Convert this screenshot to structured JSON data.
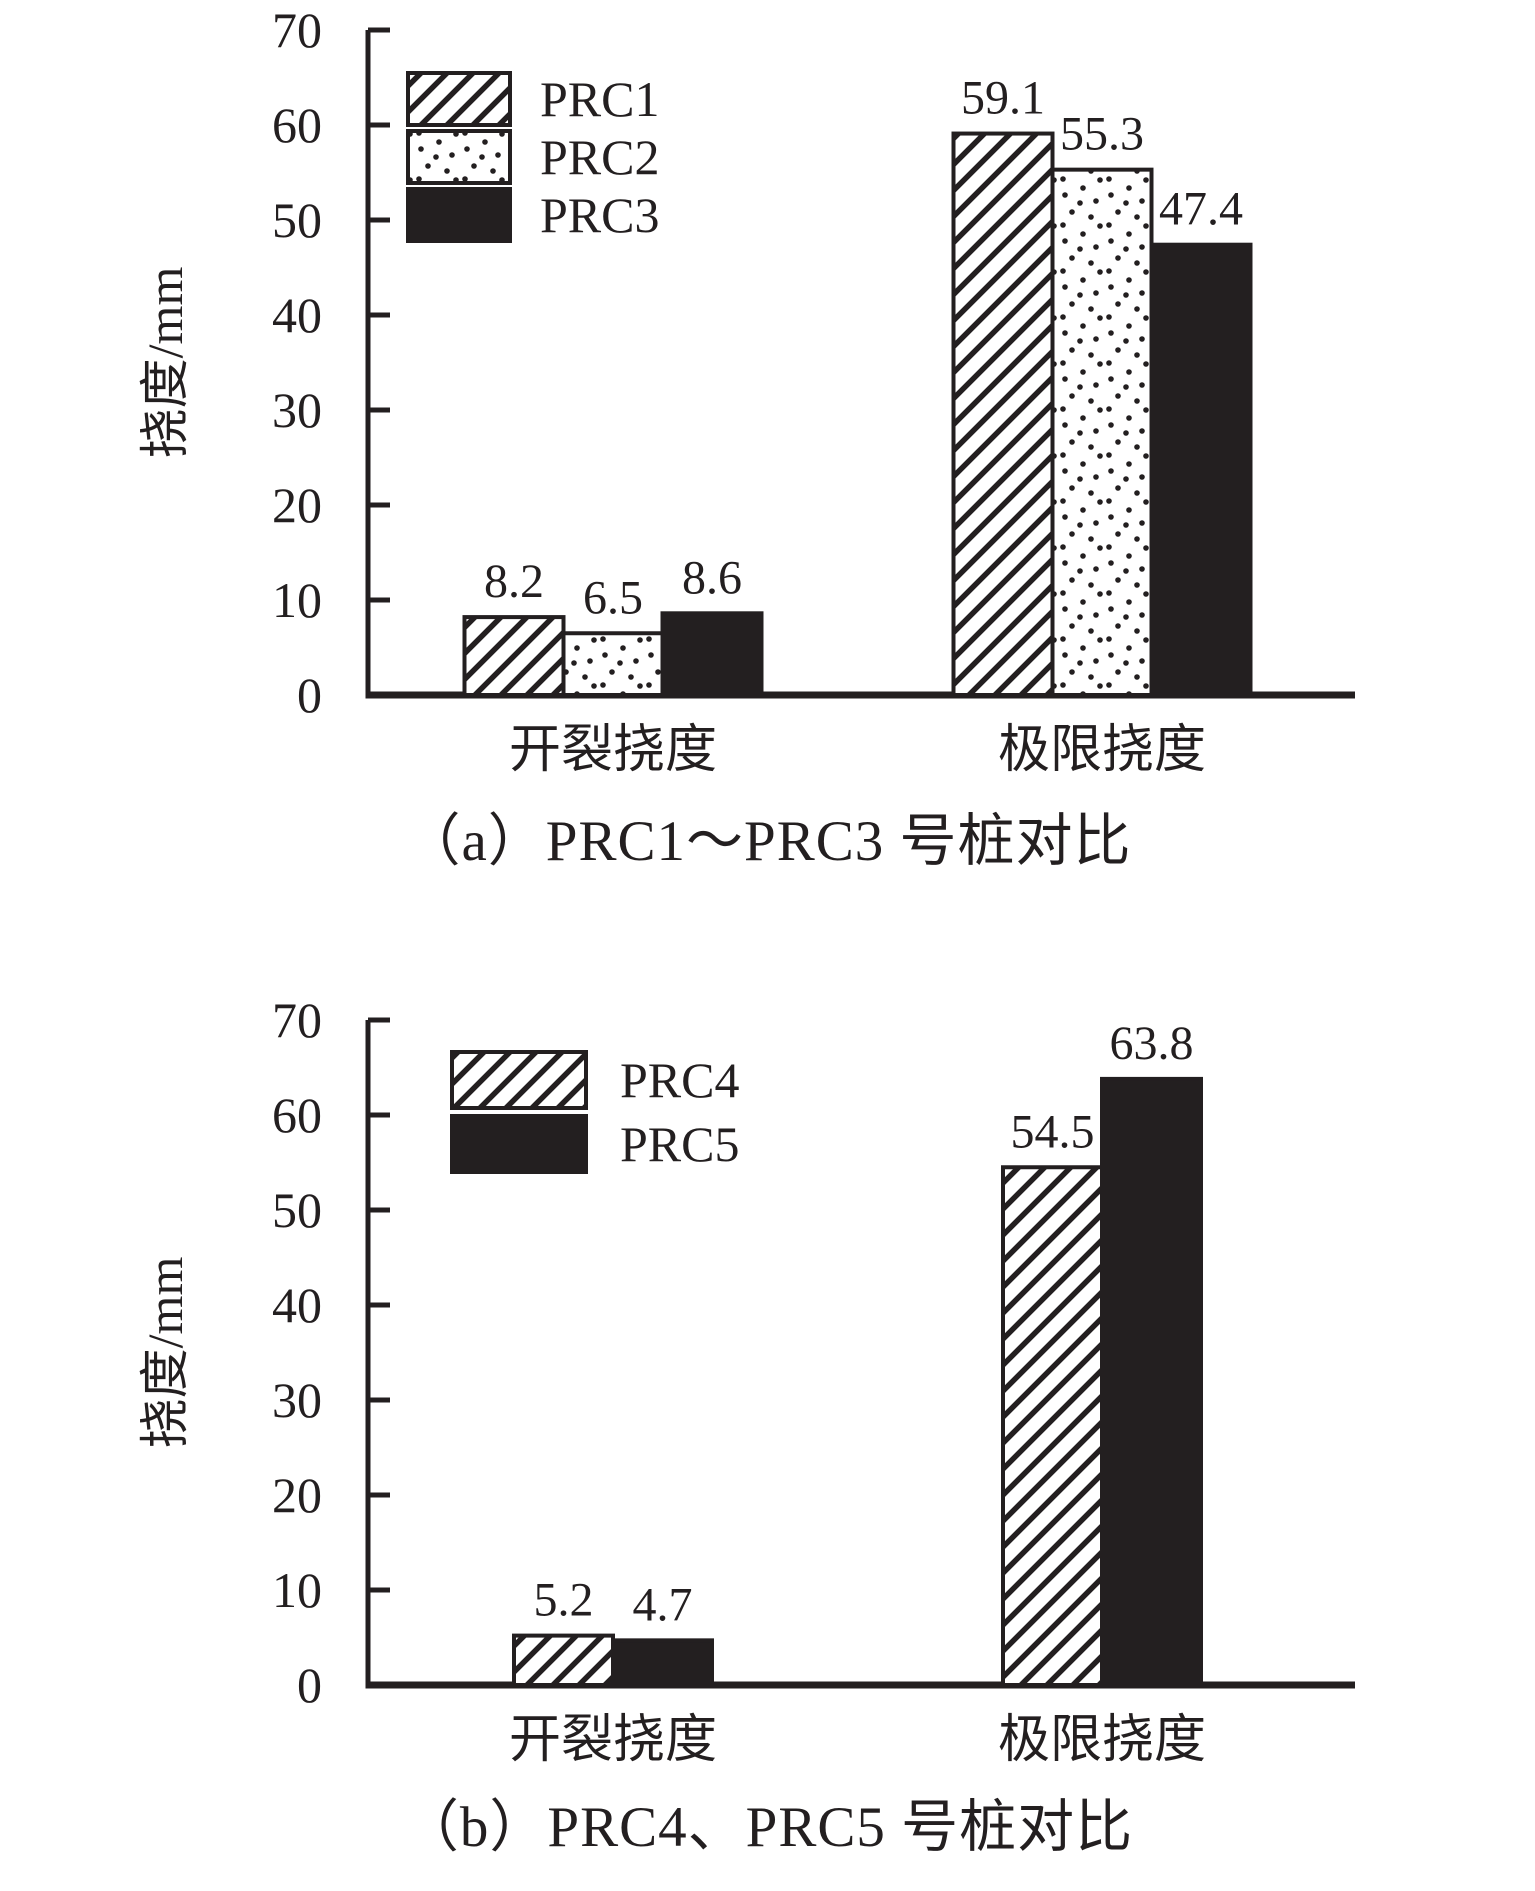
{
  "page": {
    "background": "#ffffff",
    "ink_color": "#231f20",
    "bar_fill_solid": "#231f20",
    "bar_fill_patterned": "#ffffff"
  },
  "chart_data": [
    {
      "id": "a",
      "type": "bar",
      "caption": "（a）PRC1～PRC3 号桩对比",
      "ylabel": "挠度/mm",
      "xlabel": "",
      "ylim": [
        0,
        70
      ],
      "yticks": [
        0,
        10,
        20,
        30,
        40,
        50,
        60,
        70
      ],
      "grid": false,
      "legend_position": "upper-left-inside",
      "categories": [
        "开裂挠度",
        "极限挠度"
      ],
      "series": [
        {
          "name": "PRC1",
          "pattern": "hatch",
          "values": [
            8.2,
            59.1
          ],
          "labels": [
            "8.2",
            "59.1"
          ]
        },
        {
          "name": "PRC2",
          "pattern": "dots",
          "values": [
            6.5,
            55.3
          ],
          "labels": [
            "6.5",
            "55.3"
          ]
        },
        {
          "name": "PRC3",
          "pattern": "solid",
          "values": [
            8.6,
            47.4
          ],
          "labels": [
            "8.6",
            "47.4"
          ]
        }
      ],
      "legend_box": {
        "x": 408,
        "y": 73,
        "w": 102,
        "h": 52,
        "gap": 6,
        "text_dx": 30
      }
    },
    {
      "id": "b",
      "type": "bar",
      "caption": "（b）PRC4、PRC5 号桩对比",
      "ylabel": "挠度/mm",
      "xlabel": "",
      "ylim": [
        0,
        70
      ],
      "yticks": [
        0,
        10,
        20,
        30,
        40,
        50,
        60,
        70
      ],
      "grid": false,
      "legend_position": "upper-left-inside",
      "categories": [
        "开裂挠度",
        "极限挠度"
      ],
      "series": [
        {
          "name": "PRC4",
          "pattern": "hatch",
          "values": [
            5.2,
            54.5
          ],
          "labels": [
            "5.2",
            "54.5"
          ]
        },
        {
          "name": "PRC5",
          "pattern": "solid",
          "values": [
            4.7,
            63.8
          ],
          "labels": [
            "4.7",
            "63.8"
          ]
        }
      ],
      "legend_box": {
        "x": 452,
        "y": 62,
        "w": 134,
        "h": 56,
        "gap": 8,
        "text_dx": 34
      }
    }
  ]
}
